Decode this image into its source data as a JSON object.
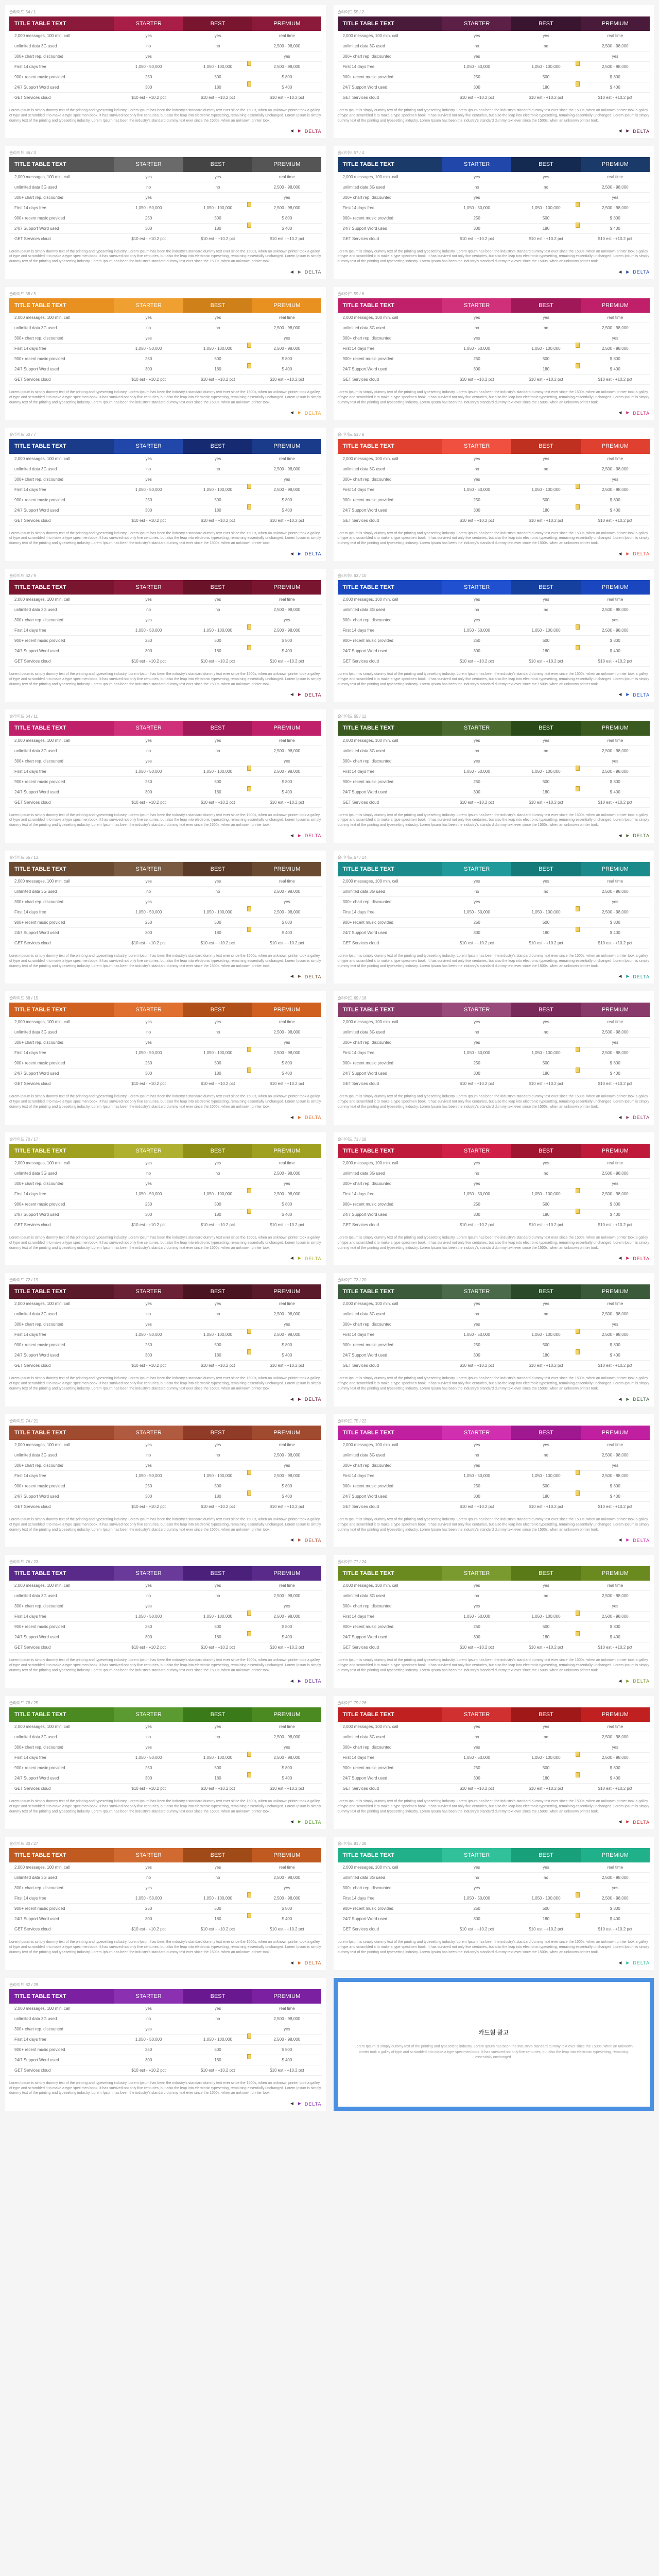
{
  "title_text": "TITLE TABLE TEXT",
  "plans": [
    "STARTER",
    "BEST",
    "PREMIUM"
  ],
  "rows": [
    {
      "label": "2,000 messages, 100 min. call",
      "v": [
        "yes",
        "yes",
        "real time"
      ]
    },
    {
      "label": "unlimited data 3G used",
      "v": [
        "no",
        "no",
        "2,500 - 98,000"
      ]
    },
    {
      "label": "300+ chart rep. discounted",
      "v": [
        "yes",
        "",
        "yes"
      ]
    },
    {
      "label": "First 14 days free",
      "v": [
        "1,050 - 50,000",
        "1,050 - 100,000",
        "2,500 - 98,000"
      ]
    },
    {
      "label": "900+ recent music provided",
      "v": [
        "250",
        "500",
        "$ 800"
      ]
    },
    {
      "label": "24/7 Support Word used",
      "v": [
        "300",
        "180",
        "$ 400"
      ]
    },
    {
      "label": "GET Services cloud",
      "v": [
        "$10 est - +10.2 pct",
        "$10 est - +10.2 pct",
        "$10 est - +10.2 pct"
      ]
    }
  ],
  "lorem": "Lorem Ipsum is simply dummy text of the printing and typesetting industry. Lorem Ipsum has been the industry's standard dummy text ever since the 1500s, when an unknown printer took a galley of type and scrambled it to make a type specimen book. It has survived not only five centuries, but also the leap into electronic typesetting, remaining essentially unchanged. Lorem Ipsum is simply dummy text of the printing and typesetting industry. Lorem Ipsum has been the industry's standard dummy text ever since the 1500s, when an unknown printer took.",
  "delta_label": "DELTA",
  "ad_title": "카드형 광고",
  "ad_text": "Lorem Ipsum is simply dummy text of the printing and typesetting industry. Lorem Ipsum has been the industry's standard dummy text ever since the 1500s, when an unknown printer took a galley of type and scrambled it to make a type specimen book. It has survived not only five centuries, but also the leap into electronic typesetting, remaining essentially unchanged.",
  "slide_prefix": "슬라이드",
  "cards": [
    {
      "n": "54 / 1",
      "c1": "#8b1a3a",
      "c2": "#a91e47",
      "c3": "#7a1530",
      "c4": "#8b1a3a",
      "a": "#a91e47"
    },
    {
      "n": "55 / 2",
      "c1": "#4a1a3a",
      "c2": "#5c2047",
      "c3": "#3a1530",
      "c4": "#4a1a3a",
      "a": "#5c2047"
    },
    {
      "n": "56 / 3",
      "c1": "#555555",
      "c2": "#6a6a6a",
      "c3": "#444444",
      "c4": "#555555",
      "a": "#6a6a6a"
    },
    {
      "n": "57 / 4",
      "c1": "#1a3a6a",
      "c2": "#2047a9",
      "c3": "#152a50",
      "c4": "#1a3a6a",
      "a": "#2047a9"
    },
    {
      "n": "58 / 5",
      "c1": "#e89020",
      "c2": "#f0a030",
      "c3": "#d08018",
      "c4": "#e89020",
      "a": "#f0a030"
    },
    {
      "n": "59 / 6",
      "c1": "#c0206a",
      "c2": "#d0307a",
      "c3": "#a01858",
      "c4": "#c0206a",
      "a": "#d0307a"
    },
    {
      "n": "60 / 7",
      "c1": "#1a3a8a",
      "c2": "#2047a9",
      "c3": "#152a70",
      "c4": "#1a3a8a",
      "a": "#2047a9"
    },
    {
      "n": "61 / 8",
      "c1": "#e04030",
      "c2": "#f05040",
      "c3": "#c03020",
      "c4": "#e04030",
      "a": "#f05040"
    },
    {
      "n": "62 / 9",
      "c1": "#7a1530",
      "c2": "#8b1a3a",
      "c3": "#6a1228",
      "c4": "#7a1530",
      "a": "#8b1a3a"
    },
    {
      "n": "63 / 10",
      "c1": "#1a47c0",
      "c2": "#2050d0",
      "c3": "#1540a0",
      "c4": "#1a47c0",
      "a": "#2050d0"
    },
    {
      "n": "64 / 11",
      "c1": "#c0206a",
      "c2": "#d0307a",
      "c3": "#a01858",
      "c4": "#c0206a",
      "a": "#d0307a"
    },
    {
      "n": "65 / 12",
      "c1": "#3a5a20",
      "c2": "#4a6a30",
      "c3": "#2a4a18",
      "c4": "#3a5a20",
      "a": "#4a6a30"
    },
    {
      "n": "66 / 13",
      "c1": "#6a4a30",
      "c2": "#7a5a40",
      "c3": "#5a3a28",
      "c4": "#6a4a30",
      "a": "#7a5a40"
    },
    {
      "n": "67 / 14",
      "c1": "#1a8a8a",
      "c2": "#209a9a",
      "c3": "#157a7a",
      "c4": "#1a8a8a",
      "a": "#209a9a"
    },
    {
      "n": "68 / 15",
      "c1": "#d06020",
      "c2": "#e07030",
      "c3": "#b05018",
      "c4": "#d06020",
      "a": "#e07030"
    },
    {
      "n": "69 / 16",
      "c1": "#8a3a6a",
      "c2": "#9a4a7a",
      "c3": "#7a2a5a",
      "c4": "#8a3a6a",
      "a": "#9a4a7a"
    },
    {
      "n": "70 / 17",
      "c1": "#a0a020",
      "c2": "#b0b030",
      "c3": "#909018",
      "c4": "#a0a020",
      "a": "#b0b030"
    },
    {
      "n": "71 / 18",
      "c1": "#c01a3a",
      "c2": "#d02047",
      "c3": "#a01530",
      "c4": "#c01a3a",
      "a": "#d02047"
    },
    {
      "n": "72 / 19",
      "c1": "#5a1a2a",
      "c2": "#6a2035",
      "c3": "#4a1520",
      "c4": "#5a1a2a",
      "a": "#6a2035"
    },
    {
      "n": "73 / 20",
      "c1": "#3a5a3a",
      "c2": "#4a6a4a",
      "c3": "#2a4a2a",
      "c4": "#3a5a3a",
      "a": "#4a6a4a"
    },
    {
      "n": "74 / 21",
      "c1": "#a04a30",
      "c2": "#b05a40",
      "c3": "#903a28",
      "c4": "#a04a30",
      "a": "#b05a40"
    },
    {
      "n": "75 / 22",
      "c1": "#c020a0",
      "c2": "#d030b0",
      "c3": "#a01890",
      "c4": "#c020a0",
      "a": "#d030b0"
    },
    {
      "n": "76 / 23",
      "c1": "#5a2a8a",
      "c2": "#6a3a9a",
      "c3": "#4a207a",
      "c4": "#5a2a8a",
      "a": "#6a3a9a"
    },
    {
      "n": "77 / 24",
      "c1": "#6a8a20",
      "c2": "#7a9a30",
      "c3": "#5a7a18",
      "c4": "#6a8a20",
      "a": "#7a9a30"
    },
    {
      "n": "78 / 25",
      "c1": "#4a8a20",
      "c2": "#5a9a30",
      "c3": "#3a7a18",
      "c4": "#4a8a20",
      "a": "#5a9a30"
    },
    {
      "n": "79 / 26",
      "c1": "#c02020",
      "c2": "#d03030",
      "c3": "#a01818",
      "c4": "#c02020",
      "a": "#d03030"
    },
    {
      "n": "80 / 27",
      "c1": "#c05a20",
      "c2": "#d06a30",
      "c3": "#a04a18",
      "c4": "#c05a20",
      "a": "#d06a30"
    },
    {
      "n": "81 / 28",
      "c1": "#20b08a",
      "c2": "#30c09a",
      "c3": "#18a07a",
      "c4": "#20b08a",
      "a": "#30c09a"
    },
    {
      "n": "82 / 29",
      "c1": "#7a20a0",
      "c2": "#8a30b0",
      "c3": "#6a1890",
      "c4": "#7a20a0",
      "a": "#8a30b0"
    }
  ]
}
